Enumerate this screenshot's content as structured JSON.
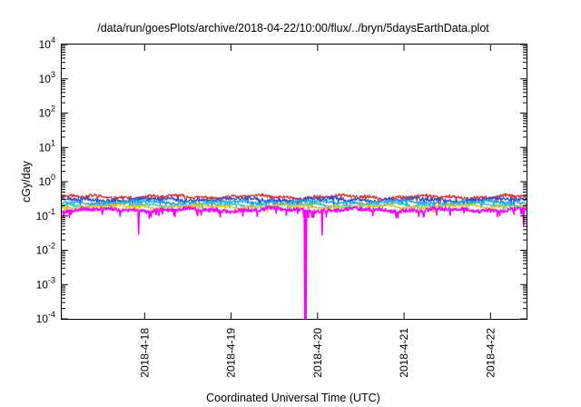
{
  "chart_data": {
    "type": "line",
    "title": "/data/run/goesPlots/archive/2018-04-22/10:00/flux/../bryn/5daysEarthData.plot",
    "xlabel": "Coordinated Universal Time (UTC)",
    "ylabel": "cGy/day",
    "yscale": "log",
    "ylim": [
      0.0001,
      10000
    ],
    "xlim": [
      "2018-04-17T01:00",
      "2018-04-22T10:00"
    ],
    "y_ticks": [
      {
        "value": 0.0001,
        "base": "10",
        "exp": "-4"
      },
      {
        "value": 0.001,
        "base": "10",
        "exp": "-3"
      },
      {
        "value": 0.01,
        "base": "10",
        "exp": "-2"
      },
      {
        "value": 0.1,
        "base": "10",
        "exp": "-1"
      },
      {
        "value": 1,
        "base": "10",
        "exp": "0"
      },
      {
        "value": 10,
        "base": "10",
        "exp": "1"
      },
      {
        "value": 100,
        "base": "10",
        "exp": "2"
      },
      {
        "value": 1000,
        "base": "10",
        "exp": "3"
      },
      {
        "value": 10000,
        "base": "10",
        "exp": "4"
      }
    ],
    "x_ticks": [
      "2018-4-18",
      "2018-4-19",
      "2018-4-20",
      "2018-4-21",
      "2018-4-22"
    ],
    "grid": false,
    "legend": "none",
    "series": [
      {
        "color": "#e8312a",
        "base": 0.36,
        "sigma": 0.1,
        "seed": 11
      },
      {
        "color": "#2f52d6",
        "base": 0.3,
        "sigma": 0.12,
        "seed": 23
      },
      {
        "color": "#20a8f0",
        "base": 0.25,
        "sigma": 0.1,
        "seed": 37
      },
      {
        "color": "#35d0b8",
        "base": 0.21,
        "sigma": 0.08,
        "seed": 41
      },
      {
        "color": "#f2c200",
        "base": 0.19,
        "sigma": 0.06,
        "seed": 53
      },
      {
        "color": "#ff00ff",
        "base": 0.15,
        "sigma": 0.12,
        "seed": 67,
        "events": [
          {
            "t": "2018-04-17T22:20",
            "y": 0.03
          },
          {
            "t": "2018-04-19T20:30",
            "y": 0.0001
          },
          {
            "t": "2018-04-19T20:50",
            "y": 0.0001
          },
          {
            "t": "2018-04-20T01:20",
            "y": 0.028
          },
          {
            "t": "2018-04-22T09:10",
            "y": 0.055
          }
        ]
      }
    ]
  }
}
